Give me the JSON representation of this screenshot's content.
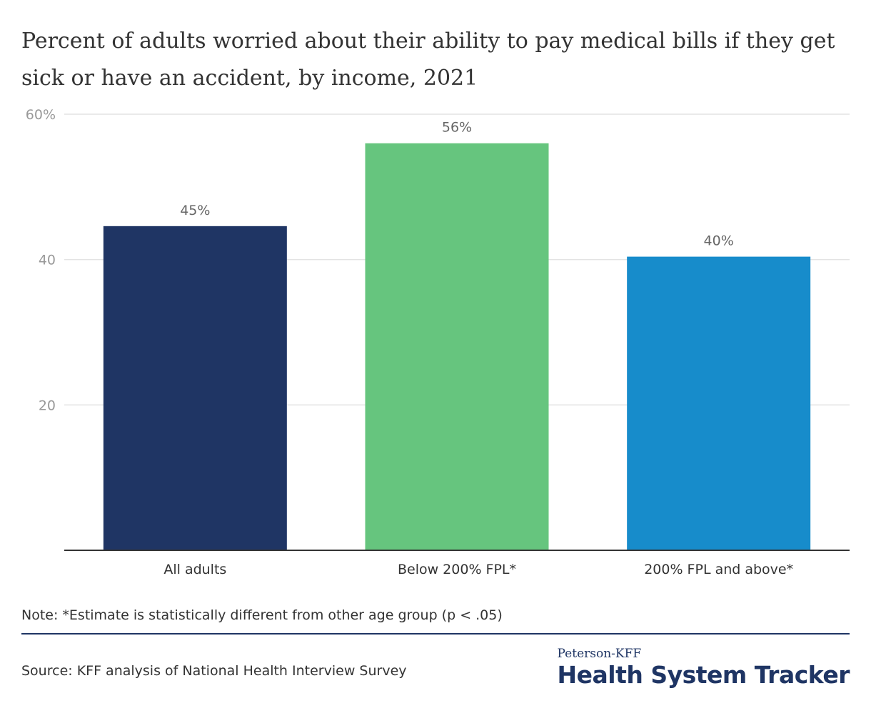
{
  "title": "Percent of adults worried about their ability to pay medical bills if they get sick or have an accident, by income, 2021",
  "note": "Note: *Estimate is statistically different from other age group (p < .05)",
  "source": "Source: KFF analysis of National Health Interview Survey",
  "brand": {
    "top": "Peterson-KFF",
    "main": "Health System Tracker"
  },
  "colors": {
    "grid": "#e3e3e3",
    "axis": "#333333",
    "tick_text": "#999999",
    "label_text": "#333333",
    "value_text": "#666666"
  },
  "chart_data": {
    "type": "bar",
    "categories": [
      "All adults",
      "Below 200% FPL*",
      "200% FPL and above*"
    ],
    "values": [
      44.6,
      56,
      40.4
    ],
    "data_labels": [
      "45%",
      "56%",
      "40%"
    ],
    "colors": [
      "#1f3564",
      "#66c57e",
      "#178ccb"
    ],
    "ylim": [
      0,
      60
    ],
    "yticks": [
      20,
      40,
      60
    ],
    "ytick_labels": [
      "20",
      "40",
      "60%"
    ],
    "grid": true,
    "xlabel": "",
    "ylabel": ""
  }
}
